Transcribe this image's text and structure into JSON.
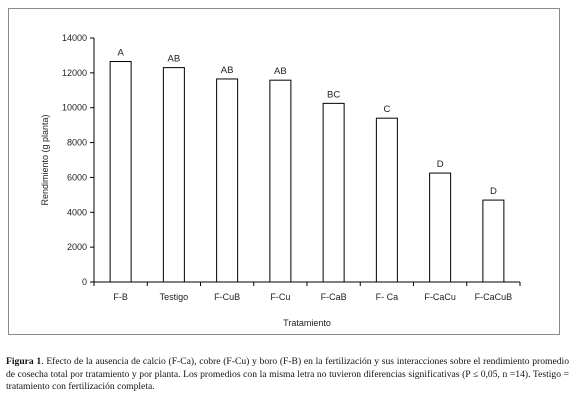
{
  "chart_data": {
    "type": "bar",
    "categories": [
      "F-B",
      "Testigo",
      "F-CuB",
      "F-Cu",
      "F-CaB",
      "F- Ca",
      "F-CaCu",
      "F-CaCuB"
    ],
    "values": [
      12650,
      12300,
      11650,
      11580,
      10250,
      9400,
      6250,
      4700
    ],
    "letters": [
      "A",
      "AB",
      "AB",
      "AB",
      "BC",
      "C",
      "D",
      "D"
    ],
    "xlabel": "Tratamiento",
    "ylabel": "Rendimiento (g planta)",
    "ylim": [
      0,
      14000
    ],
    "yticks": [
      "0",
      "2000",
      "4000",
      "6000",
      "8000",
      "10000",
      "12000",
      "14000"
    ],
    "grid": false,
    "bar_color": "#ffffff",
    "bar_edge_color": "#000000"
  },
  "caption": {
    "label": "Figura 1",
    "text": ". Efecto de la ausencia de calcio (F-Ca), cobre (F-Cu) y boro (F-B) en la fertilización y sus interacciones sobre el rendimiento promedio de cosecha total por tratamiento y por planta. Los promedios con la misma letra no tuvieron diferencias significativas (P ≤ 0,05, n =14). Testigo = tratamiento con fertilización completa."
  }
}
